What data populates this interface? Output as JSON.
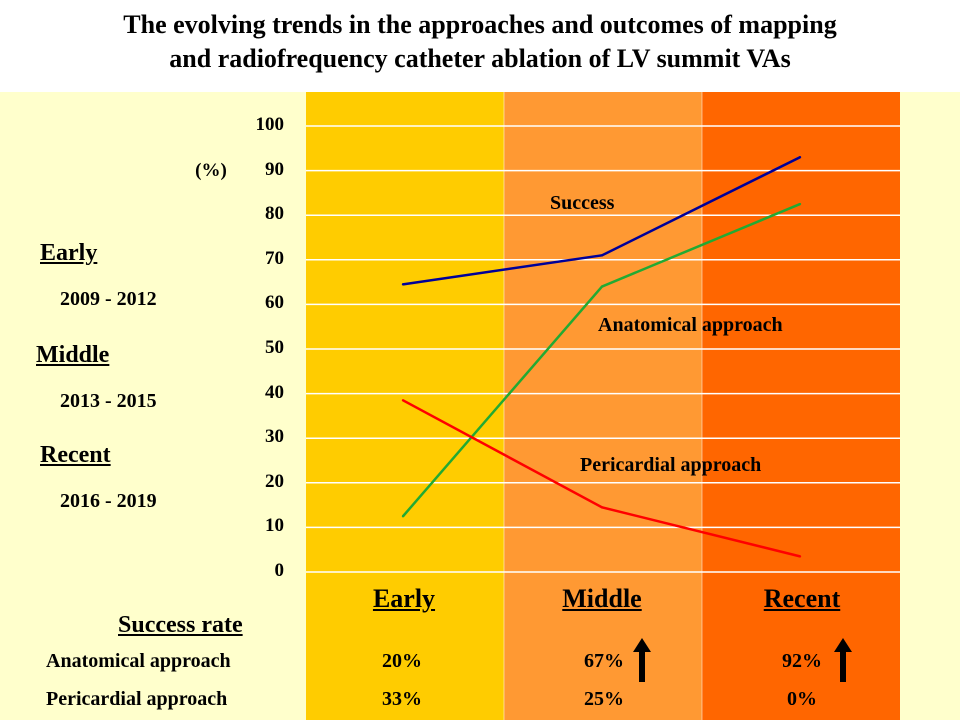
{
  "title_line1": "The evolving trends in the approaches and outcomes of mapping",
  "title_line2": "and radiofrequency catheter ablation of LV summit VAs",
  "periods": [
    {
      "name": "Early",
      "years": "2009 - 2012"
    },
    {
      "name": "Middle",
      "years": "2013 - 2015"
    },
    {
      "name": "Recent",
      "years": "2016 - 2019"
    }
  ],
  "unit_label": "(%)",
  "colors": {
    "background": "#ffffcc",
    "early_band": "#ffcc00",
    "middle_band": "#ff9933",
    "recent_band": "#ff6600",
    "success": "#000099",
    "anatomical": "#22aa33",
    "pericardial": "#ff0000"
  },
  "chart_data": {
    "type": "line",
    "categories": [
      "Early",
      "Middle",
      "Recent"
    ],
    "ylim": [
      0,
      100
    ],
    "yticks": [
      0,
      10,
      20,
      30,
      40,
      50,
      60,
      70,
      80,
      90,
      100
    ],
    "ylabel": "(%)",
    "grid": true,
    "series": [
      {
        "name": "Success",
        "values": [
          64.5,
          71,
          93
        ]
      },
      {
        "name": "Anatomical approach",
        "values": [
          12.5,
          64,
          82.5
        ]
      },
      {
        "name": "Pericardial approach",
        "values": [
          38.5,
          14.5,
          3.5
        ]
      }
    ]
  },
  "success_rate": {
    "title": "Success rate",
    "rows": [
      {
        "label": "Anatomical approach",
        "values": [
          "20%",
          "67%",
          "92%"
        ],
        "up_arrows": [
          false,
          true,
          true
        ]
      },
      {
        "label": "Pericardial approach",
        "values": [
          "33%",
          "25%",
          "0%"
        ],
        "up_arrows": [
          false,
          false,
          false
        ]
      }
    ]
  },
  "icons": {
    "increase": "up-arrow-icon"
  }
}
